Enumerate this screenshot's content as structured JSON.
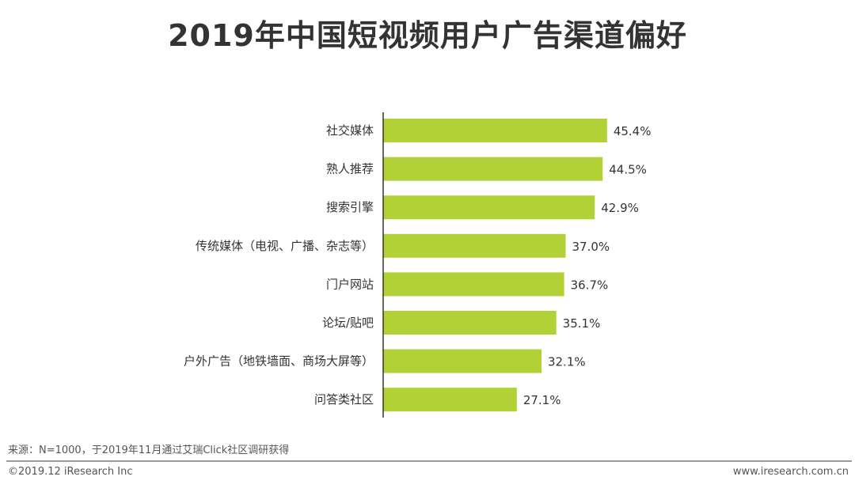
{
  "title": "2019年中国短视频用户广告渠道偏好",
  "chart_data": {
    "type": "bar",
    "orientation": "horizontal",
    "title": "2019年中国短视频用户广告渠道偏好",
    "categories": [
      "社交媒体",
      "熟人推荐",
      "搜索引擎",
      "传统媒体（电视、广播、杂志等）",
      "门户网站",
      "论坛/贴吧",
      "户外广告（地铁墙面、商场大屏等）",
      "问答类社区"
    ],
    "values": [
      45.4,
      44.5,
      42.9,
      37.0,
      36.7,
      35.1,
      32.1,
      27.1
    ],
    "labels": [
      "45.4%",
      "44.5%",
      "42.9%",
      "37.0%",
      "36.7%",
      "35.1%",
      "32.1%",
      "27.1%"
    ],
    "unit": "%",
    "xlim": [
      0,
      60
    ],
    "grid": false,
    "legend": "none",
    "bar_color": "#b1d136"
  },
  "footer": {
    "source": "来源：N=1000，于2019年11月通过艾瑞Click社区调研获得",
    "copyright": "©2019.12 iResearch Inc",
    "website": "www.iresearch.com.cn"
  }
}
